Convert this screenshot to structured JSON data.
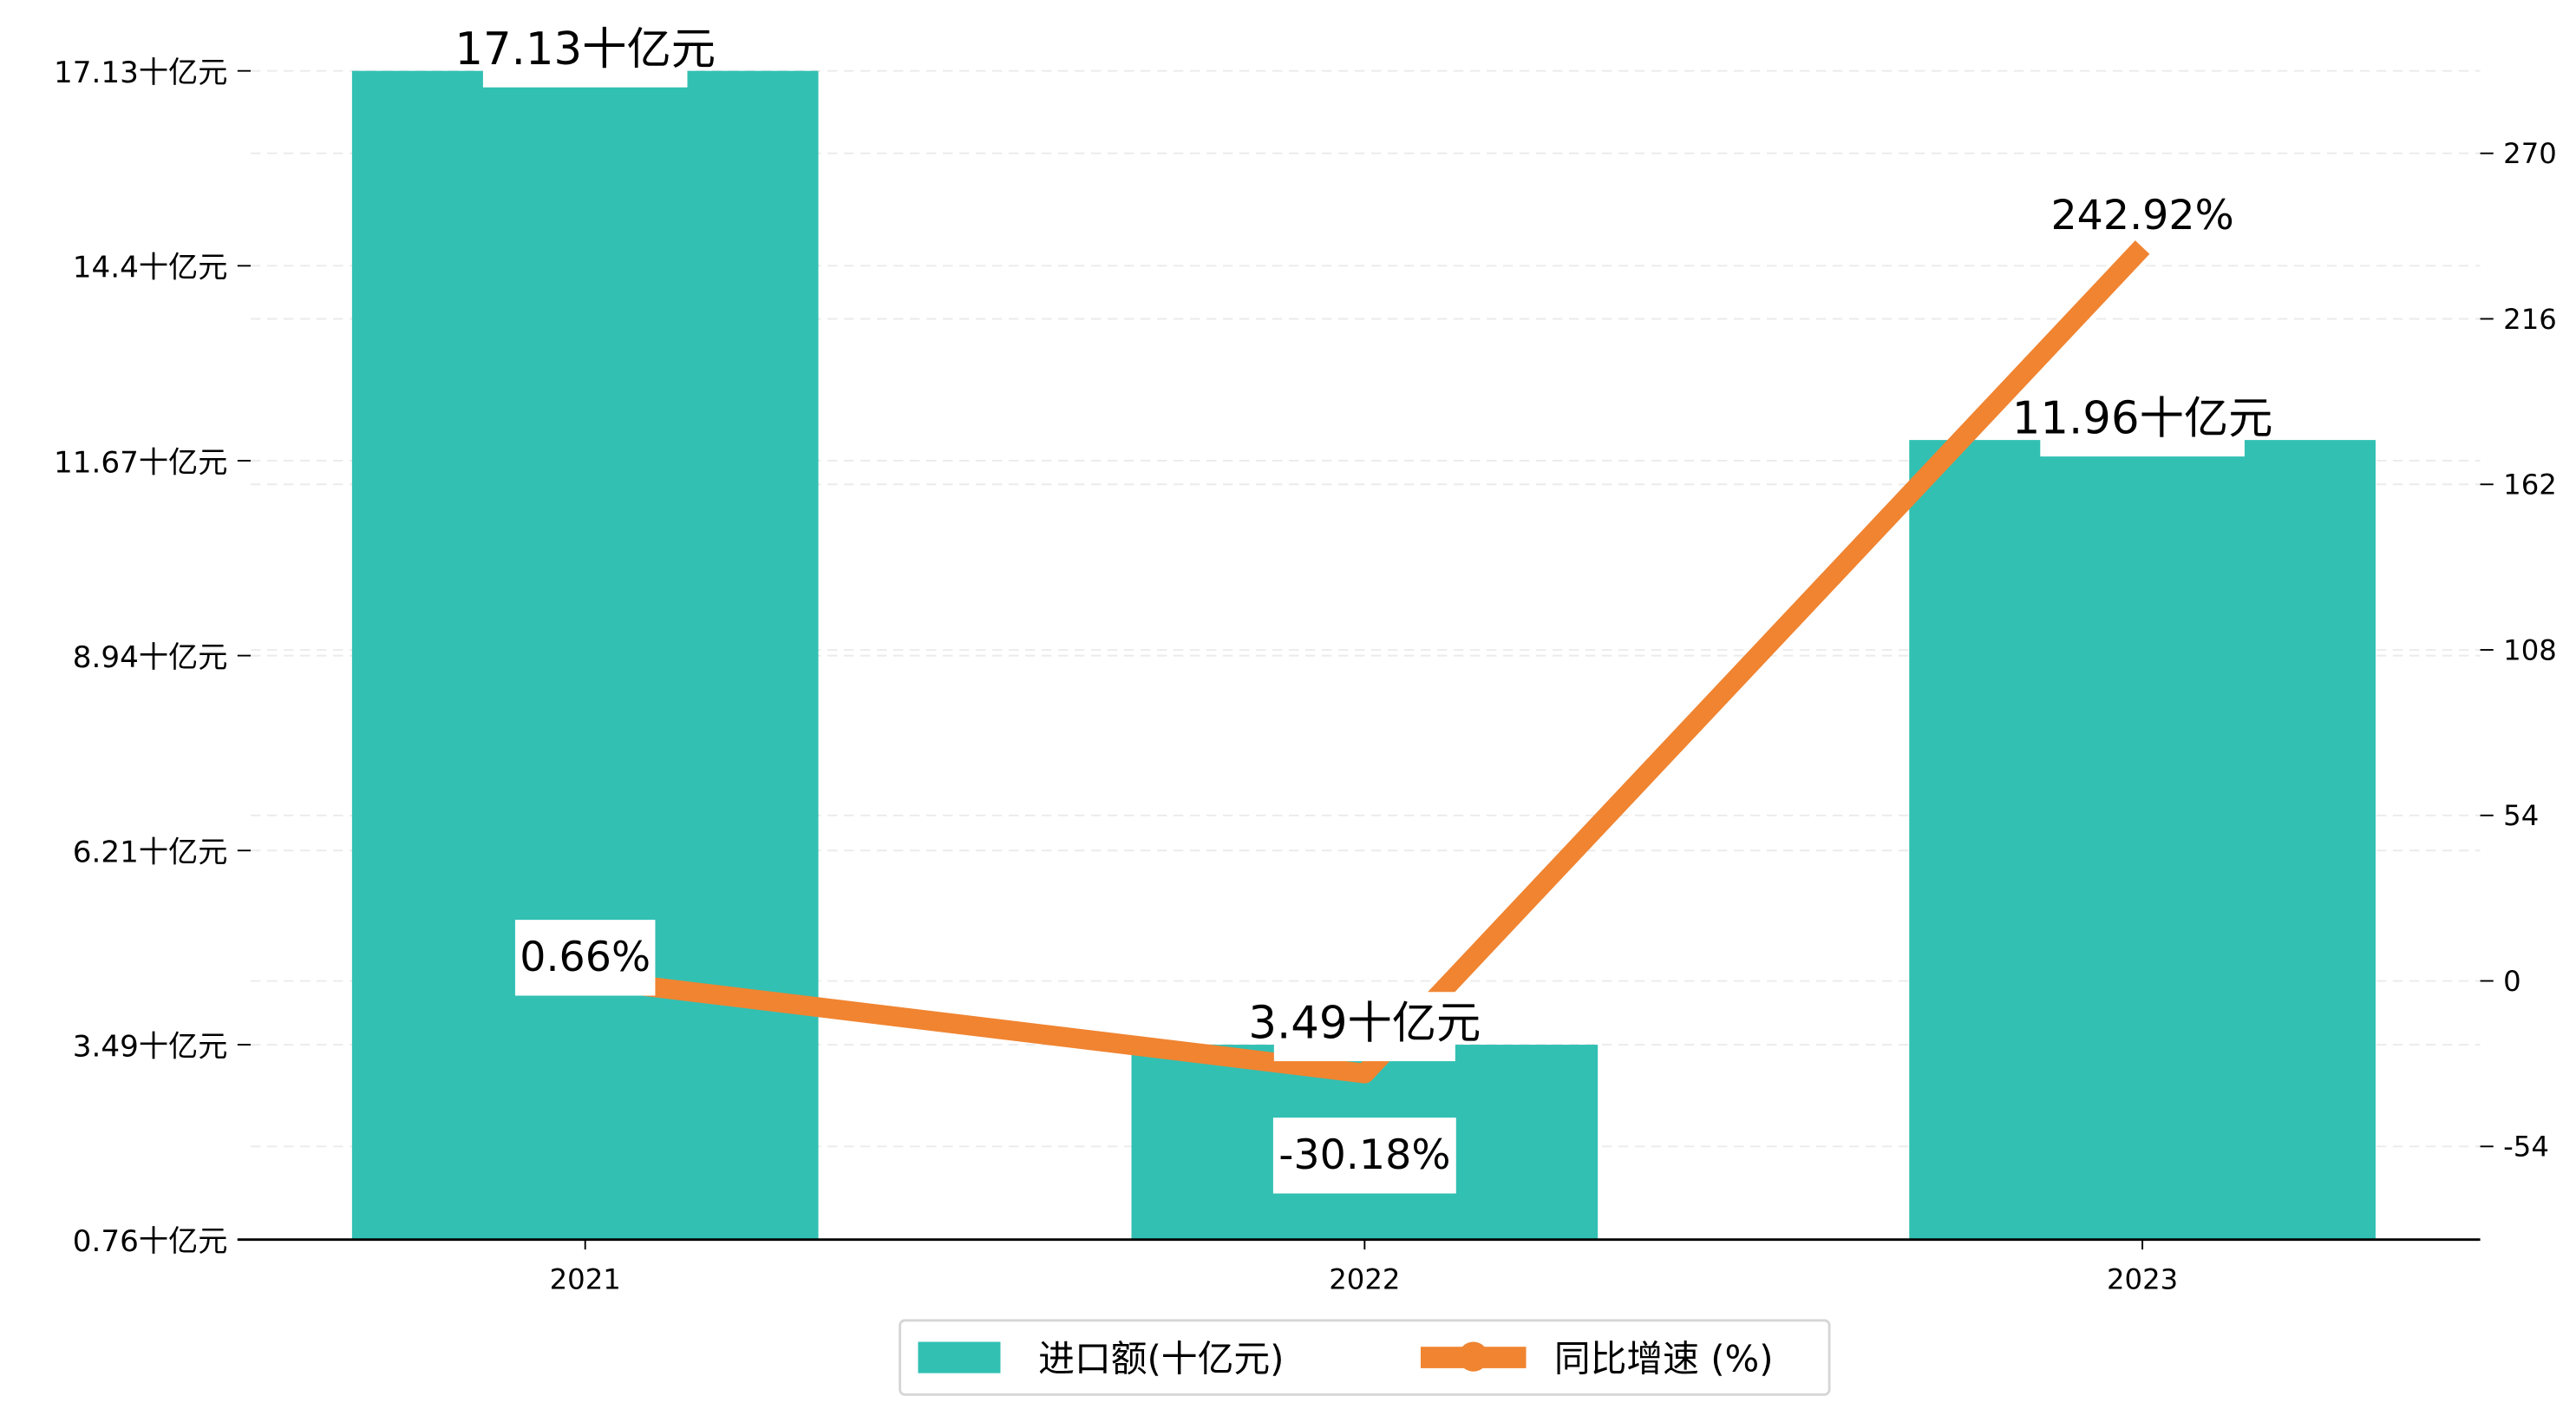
{
  "chart_data": {
    "type": "bar+line",
    "categories": [
      "2021",
      "2022",
      "2023"
    ],
    "series": [
      {
        "name": "进口额(十亿元)",
        "type": "bar",
        "axis": "left",
        "values": [
          17.13,
          3.49,
          11.96
        ],
        "labels": [
          "17.13十亿元",
          "3.49十亿元",
          "11.96十亿元"
        ],
        "color": "#32c0b3"
      },
      {
        "name": "同比增速 (%)",
        "type": "line",
        "axis": "right",
        "values": [
          0.66,
          -30.18,
          242.92
        ],
        "labels": [
          "0.66%",
          "-30.18%",
          "242.92%"
        ],
        "color": "#f08431"
      }
    ],
    "left_axis": {
      "ylim": [
        0.76,
        17.13
      ],
      "ticks": [
        0.76,
        3.49,
        6.21,
        8.94,
        11.67,
        14.4,
        17.13
      ],
      "tick_labels": [
        "0.76十亿元",
        "3.49十亿元",
        "6.21十亿元",
        "8.94十亿元",
        "11.67十亿元",
        "14.4十亿元",
        "17.13十亿元"
      ]
    },
    "right_axis": {
      "ylim": [
        -84.4,
        296.9
      ],
      "ticks": [
        -54,
        0,
        54,
        108,
        162,
        216,
        270
      ],
      "tick_labels": [
        "-54",
        "0",
        "54",
        "108",
        "162",
        "216",
        "270"
      ]
    },
    "grid": true,
    "legend": {
      "placement": "bottom-center",
      "entries": [
        "进口额(十亿元)",
        "同比增速 (%)"
      ]
    },
    "title": "",
    "xlabel": "",
    "ylabel": ""
  }
}
